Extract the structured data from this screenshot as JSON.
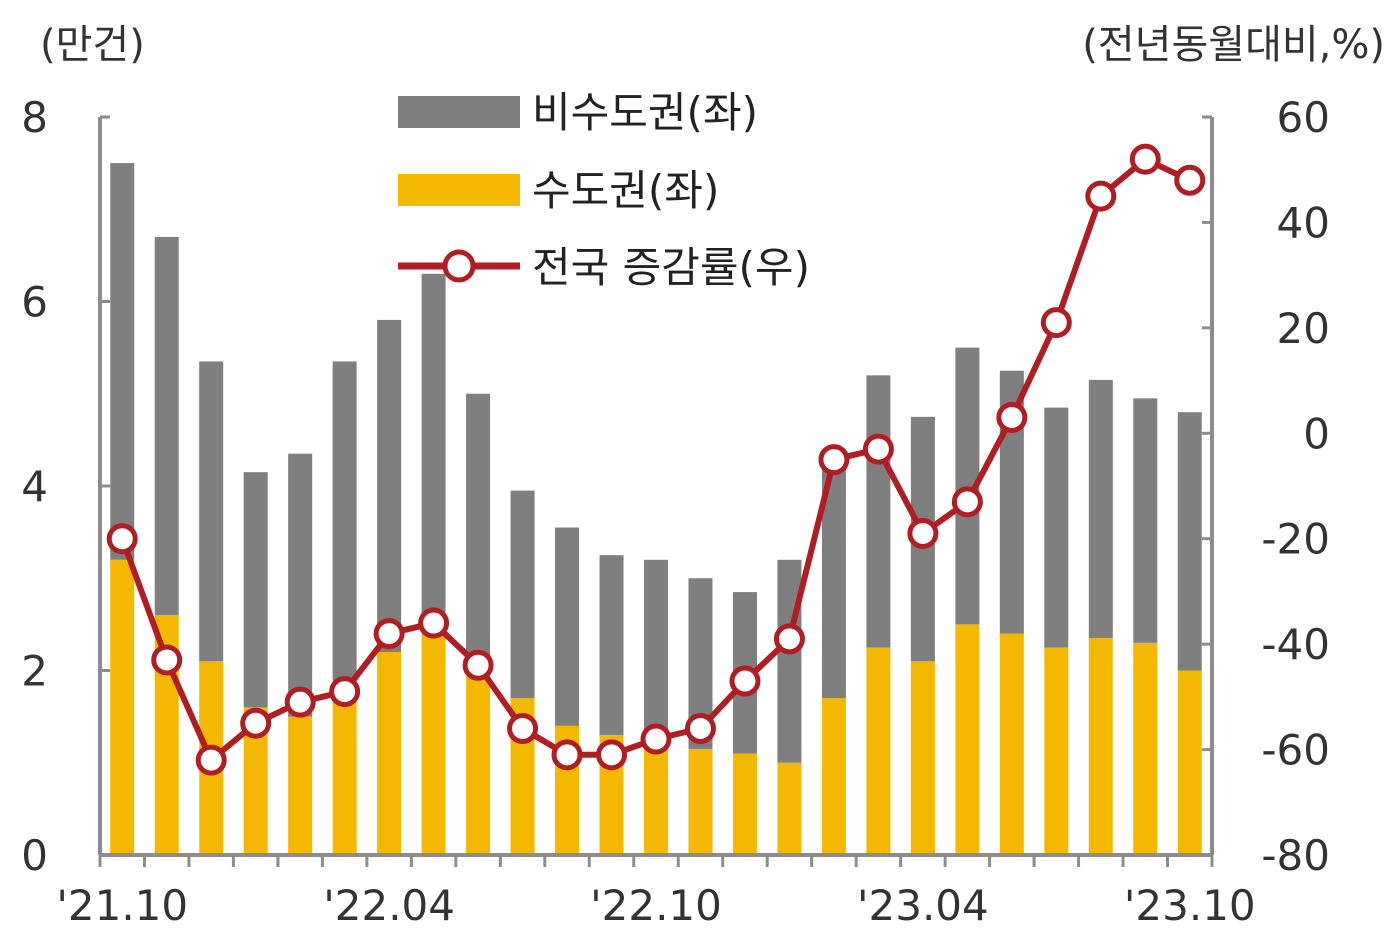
{
  "chart_data": {
    "type": "bar",
    "stacked": true,
    "left_axis": {
      "unit_label": "(만건)",
      "ylim": [
        0,
        8
      ],
      "ticks": [
        "0",
        "2",
        "4",
        "6",
        "8"
      ]
    },
    "right_axis": {
      "unit_label": "(전년동월대비,%)",
      "ylim": [
        -80,
        60
      ],
      "ticks": [
        "-80",
        "-60",
        "-40",
        "-20",
        "0",
        "20",
        "40",
        "60"
      ]
    },
    "x_tick_labels": [
      {
        "index": 0,
        "label": "'21.10"
      },
      {
        "index": 6,
        "label": "'22.04"
      },
      {
        "index": 12,
        "label": "'22.10"
      },
      {
        "index": 18,
        "label": "'23.04"
      },
      {
        "index": 24,
        "label": "'23.10"
      }
    ],
    "months": 25,
    "series": [
      {
        "name": "수도권(좌)",
        "kind": "bar",
        "axis": "left",
        "color": "#F5B800",
        "values": [
          3.2,
          2.6,
          2.1,
          1.6,
          1.5,
          1.7,
          2.2,
          2.4,
          2.0,
          1.7,
          1.4,
          1.3,
          1.2,
          1.15,
          1.1,
          1.0,
          1.7,
          2.25,
          2.1,
          2.5,
          2.4,
          2.25,
          2.35,
          2.3,
          2.0
        ]
      },
      {
        "name": "비수도권(좌)",
        "kind": "bar",
        "axis": "left",
        "color": "#7F7F7F",
        "values": [
          4.3,
          4.1,
          3.25,
          2.55,
          2.85,
          3.65,
          3.6,
          3.9,
          3.0,
          2.25,
          2.15,
          1.95,
          2.0,
          1.85,
          1.75,
          2.2,
          2.5,
          2.95,
          2.65,
          3.0,
          2.85,
          2.6,
          2.8,
          2.65,
          2.8
        ]
      },
      {
        "name": "전국 증감률(우)",
        "kind": "line",
        "axis": "right",
        "color": "#B01E23",
        "values": [
          -20,
          -43,
          -62,
          -55,
          -51,
          -49,
          -38,
          -36,
          -44,
          -56,
          -61,
          -61,
          -58,
          -56,
          -47,
          -39,
          -5,
          -3,
          -19,
          -13,
          3,
          21,
          45,
          52,
          48
        ]
      }
    ],
    "legend": {
      "placement": "top-left"
    },
    "grid": false
  }
}
